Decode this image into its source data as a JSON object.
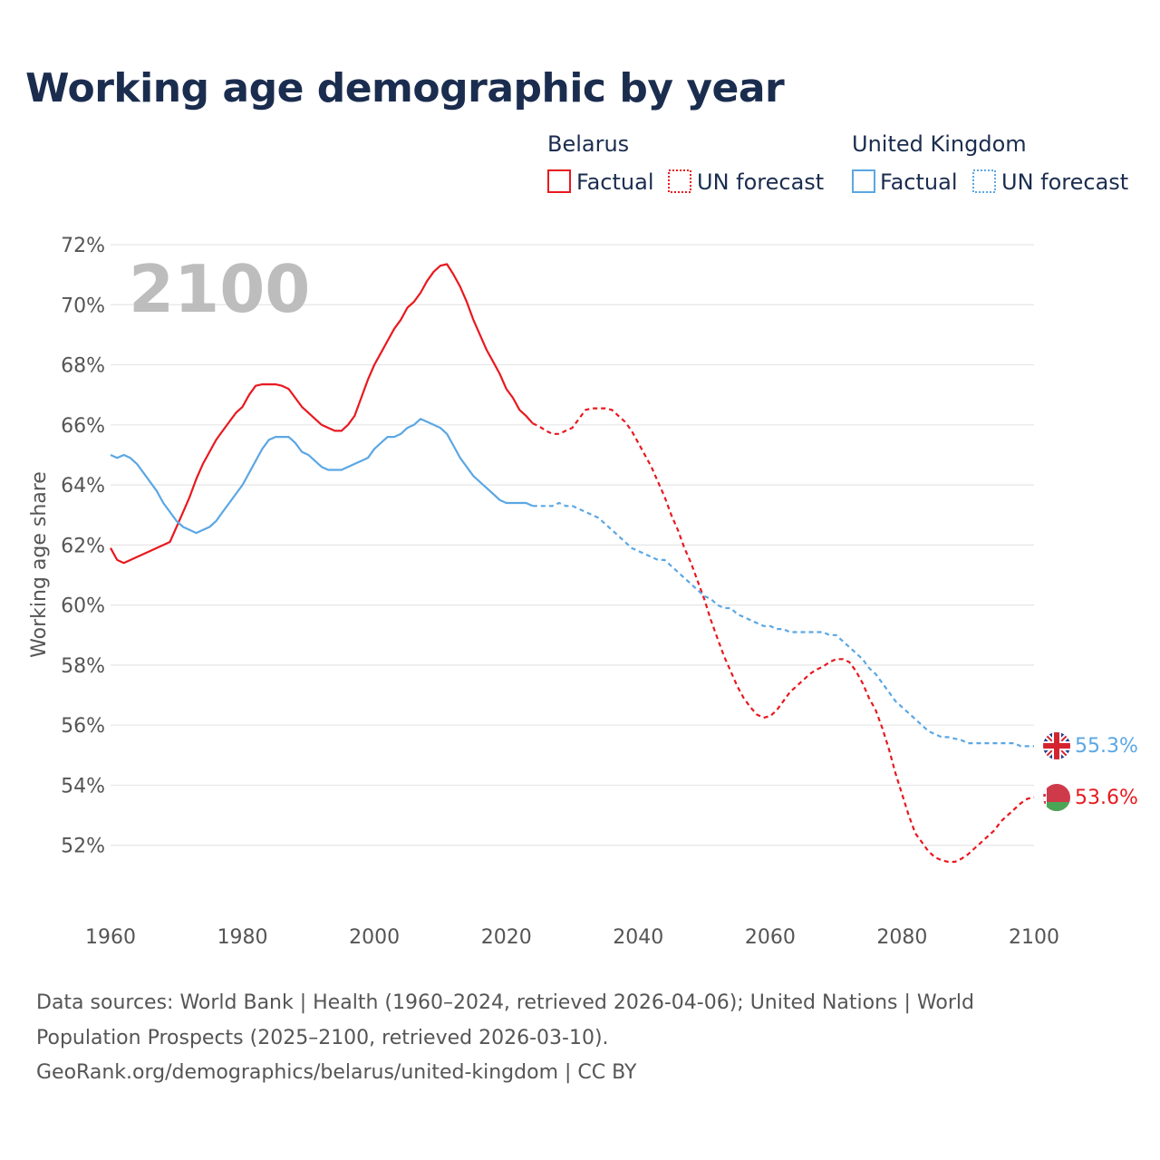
{
  "title": "Working age demographic by year",
  "big_year": "2100",
  "legend": {
    "groups": [
      {
        "name": "Belarus",
        "factual": "Factual",
        "forecast": "UN forecast",
        "color": "#e8191f"
      },
      {
        "name": "United Kingdom",
        "factual": "Factual",
        "forecast": "UN forecast",
        "color": "#5ba7e4"
      }
    ]
  },
  "end_labels": {
    "uk": "55.3%",
    "belarus": "53.6%"
  },
  "flags": {
    "uk": "uk-flag-icon",
    "belarus": "belarus-flag-icon"
  },
  "source": {
    "line1": "Data sources: World Bank | Health (1960–2024, retrieved 2026-04-06); United Nations | World",
    "line2": "Population Prospects (2025–2100, retrieved 2026-03-10).",
    "line3": "GeoRank.org/demographics/belarus/united-kingdom | CC BY"
  },
  "chart_data": {
    "type": "line",
    "title": "Working age demographic by year",
    "xlabel": "",
    "ylabel": "Working age share",
    "xlim": [
      1960,
      2100
    ],
    "ylim": [
      50,
      72
    ],
    "xticks": [
      1960,
      1980,
      2000,
      2020,
      2040,
      2060,
      2080,
      2100
    ],
    "yticks": [
      52,
      54,
      56,
      58,
      60,
      62,
      64,
      66,
      68,
      70,
      72
    ],
    "xtick_labels": [
      "1960",
      "1980",
      "2000",
      "2020",
      "2040",
      "2060",
      "2080",
      "2100"
    ],
    "ytick_labels": [
      "52%",
      "54%",
      "56%",
      "58%",
      "60%",
      "62%",
      "64%",
      "66%",
      "68%",
      "70%",
      "72%"
    ],
    "grid": true,
    "series": [
      {
        "name": "Belarus – Factual",
        "color": "#e8191f",
        "dash": "solid",
        "points": [
          [
            1960,
            61.9
          ],
          [
            1961,
            61.5
          ],
          [
            1962,
            61.4
          ],
          [
            1964,
            61.6
          ],
          [
            1966,
            61.8
          ],
          [
            1968,
            62.0
          ],
          [
            1969,
            62.1
          ],
          [
            1970,
            62.6
          ],
          [
            1971,
            63.1
          ],
          [
            1972,
            63.6
          ],
          [
            1973,
            64.2
          ],
          [
            1974,
            64.7
          ],
          [
            1975,
            65.1
          ],
          [
            1976,
            65.5
          ],
          [
            1977,
            65.8
          ],
          [
            1978,
            66.1
          ],
          [
            1979,
            66.4
          ],
          [
            1980,
            66.6
          ],
          [
            1981,
            67.0
          ],
          [
            1982,
            67.3
          ],
          [
            1983,
            67.35
          ],
          [
            1984,
            67.35
          ],
          [
            1985,
            67.35
          ],
          [
            1986,
            67.3
          ],
          [
            1987,
            67.2
          ],
          [
            1988,
            66.9
          ],
          [
            1989,
            66.6
          ],
          [
            1990,
            66.4
          ],
          [
            1991,
            66.2
          ],
          [
            1992,
            66.0
          ],
          [
            1993,
            65.9
          ],
          [
            1994,
            65.8
          ],
          [
            1995,
            65.8
          ],
          [
            1996,
            66.0
          ],
          [
            1997,
            66.3
          ],
          [
            1998,
            66.9
          ],
          [
            1999,
            67.5
          ],
          [
            2000,
            68.0
          ],
          [
            2001,
            68.4
          ],
          [
            2002,
            68.8
          ],
          [
            2003,
            69.2
          ],
          [
            2004,
            69.5
          ],
          [
            2005,
            69.9
          ],
          [
            2006,
            70.1
          ],
          [
            2007,
            70.4
          ],
          [
            2008,
            70.8
          ],
          [
            2009,
            71.1
          ],
          [
            2010,
            71.3
          ],
          [
            2011,
            71.35
          ],
          [
            2012,
            71.0
          ],
          [
            2013,
            70.6
          ],
          [
            2014,
            70.1
          ],
          [
            2015,
            69.5
          ],
          [
            2016,
            69.0
          ],
          [
            2017,
            68.5
          ],
          [
            2018,
            68.1
          ],
          [
            2019,
            67.7
          ],
          [
            2020,
            67.2
          ],
          [
            2021,
            66.9
          ],
          [
            2022,
            66.5
          ],
          [
            2023,
            66.3
          ],
          [
            2024,
            66.05
          ]
        ]
      },
      {
        "name": "Belarus – UN forecast",
        "color": "#e8191f",
        "dash": "dashed",
        "points": [
          [
            2024,
            66.05
          ],
          [
            2025,
            65.95
          ],
          [
            2026,
            65.8
          ],
          [
            2027,
            65.7
          ],
          [
            2028,
            65.7
          ],
          [
            2029,
            65.8
          ],
          [
            2030,
            65.9
          ],
          [
            2031,
            66.2
          ],
          [
            2032,
            66.5
          ],
          [
            2033,
            66.55
          ],
          [
            2034,
            66.55
          ],
          [
            2035,
            66.55
          ],
          [
            2036,
            66.5
          ],
          [
            2037,
            66.3
          ],
          [
            2038,
            66.1
          ],
          [
            2039,
            65.8
          ],
          [
            2040,
            65.4
          ],
          [
            2041,
            65.0
          ],
          [
            2042,
            64.6
          ],
          [
            2043,
            64.1
          ],
          [
            2044,
            63.6
          ],
          [
            2045,
            63.0
          ],
          [
            2046,
            62.5
          ],
          [
            2047,
            61.9
          ],
          [
            2048,
            61.4
          ],
          [
            2049,
            60.8
          ],
          [
            2050,
            60.2
          ],
          [
            2051,
            59.5
          ],
          [
            2052,
            58.9
          ],
          [
            2053,
            58.3
          ],
          [
            2054,
            57.8
          ],
          [
            2055,
            57.3
          ],
          [
            2056,
            56.9
          ],
          [
            2057,
            56.6
          ],
          [
            2058,
            56.35
          ],
          [
            2059,
            56.25
          ],
          [
            2060,
            56.3
          ],
          [
            2061,
            56.5
          ],
          [
            2062,
            56.8
          ],
          [
            2063,
            57.1
          ],
          [
            2064,
            57.3
          ],
          [
            2065,
            57.5
          ],
          [
            2066,
            57.7
          ],
          [
            2067,
            57.85
          ],
          [
            2068,
            57.95
          ],
          [
            2069,
            58.1
          ],
          [
            2070,
            58.2
          ],
          [
            2071,
            58.2
          ],
          [
            2072,
            58.1
          ],
          [
            2073,
            57.8
          ],
          [
            2074,
            57.4
          ],
          [
            2075,
            56.9
          ],
          [
            2076,
            56.5
          ],
          [
            2077,
            55.9
          ],
          [
            2078,
            55.2
          ],
          [
            2079,
            54.4
          ],
          [
            2080,
            53.7
          ],
          [
            2081,
            53.0
          ],
          [
            2082,
            52.4
          ],
          [
            2083,
            52.1
          ],
          [
            2084,
            51.8
          ],
          [
            2085,
            51.6
          ],
          [
            2086,
            51.5
          ],
          [
            2087,
            51.45
          ],
          [
            2088,
            51.45
          ],
          [
            2089,
            51.55
          ],
          [
            2090,
            51.7
          ],
          [
            2091,
            51.9
          ],
          [
            2092,
            52.1
          ],
          [
            2093,
            52.3
          ],
          [
            2094,
            52.5
          ],
          [
            2095,
            52.8
          ],
          [
            2096,
            53.0
          ],
          [
            2097,
            53.2
          ],
          [
            2098,
            53.4
          ],
          [
            2099,
            53.55
          ],
          [
            2100,
            53.6
          ]
        ]
      },
      {
        "name": "United Kingdom – Factual",
        "color": "#5ba7e4",
        "dash": "solid",
        "points": [
          [
            1960,
            65.0
          ],
          [
            1961,
            64.9
          ],
          [
            1962,
            65.0
          ],
          [
            1963,
            64.9
          ],
          [
            1964,
            64.7
          ],
          [
            1965,
            64.4
          ],
          [
            1966,
            64.1
          ],
          [
            1967,
            63.8
          ],
          [
            1968,
            63.4
          ],
          [
            1969,
            63.1
          ],
          [
            1970,
            62.8
          ],
          [
            1971,
            62.6
          ],
          [
            1972,
            62.5
          ],
          [
            1973,
            62.4
          ],
          [
            1974,
            62.5
          ],
          [
            1975,
            62.6
          ],
          [
            1976,
            62.8
          ],
          [
            1977,
            63.1
          ],
          [
            1978,
            63.4
          ],
          [
            1979,
            63.7
          ],
          [
            1980,
            64.0
          ],
          [
            1981,
            64.4
          ],
          [
            1982,
            64.8
          ],
          [
            1983,
            65.2
          ],
          [
            1984,
            65.5
          ],
          [
            1985,
            65.6
          ],
          [
            1986,
            65.6
          ],
          [
            1987,
            65.6
          ],
          [
            1988,
            65.4
          ],
          [
            1989,
            65.1
          ],
          [
            1990,
            65.0
          ],
          [
            1991,
            64.8
          ],
          [
            1992,
            64.6
          ],
          [
            1993,
            64.5
          ],
          [
            1994,
            64.5
          ],
          [
            1995,
            64.5
          ],
          [
            1996,
            64.6
          ],
          [
            1997,
            64.7
          ],
          [
            1998,
            64.8
          ],
          [
            1999,
            64.9
          ],
          [
            2000,
            65.2
          ],
          [
            2001,
            65.4
          ],
          [
            2002,
            65.6
          ],
          [
            2003,
            65.6
          ],
          [
            2004,
            65.7
          ],
          [
            2005,
            65.9
          ],
          [
            2006,
            66.0
          ],
          [
            2007,
            66.2
          ],
          [
            2008,
            66.1
          ],
          [
            2009,
            66.0
          ],
          [
            2010,
            65.9
          ],
          [
            2011,
            65.7
          ],
          [
            2012,
            65.3
          ],
          [
            2013,
            64.9
          ],
          [
            2014,
            64.6
          ],
          [
            2015,
            64.3
          ],
          [
            2016,
            64.1
          ],
          [
            2017,
            63.9
          ],
          [
            2018,
            63.7
          ],
          [
            2019,
            63.5
          ],
          [
            2020,
            63.4
          ],
          [
            2021,
            63.4
          ],
          [
            2022,
            63.4
          ],
          [
            2023,
            63.4
          ],
          [
            2024,
            63.3
          ]
        ]
      },
      {
        "name": "United Kingdom – UN forecast",
        "color": "#5ba7e4",
        "dash": "dashed",
        "points": [
          [
            2024,
            63.3
          ],
          [
            2025,
            63.3
          ],
          [
            2026,
            63.3
          ],
          [
            2027,
            63.3
          ],
          [
            2028,
            63.4
          ],
          [
            2029,
            63.3
          ],
          [
            2030,
            63.3
          ],
          [
            2031,
            63.2
          ],
          [
            2032,
            63.1
          ],
          [
            2033,
            63.0
          ],
          [
            2034,
            62.9
          ],
          [
            2035,
            62.7
          ],
          [
            2036,
            62.5
          ],
          [
            2037,
            62.3
          ],
          [
            2038,
            62.1
          ],
          [
            2039,
            61.9
          ],
          [
            2040,
            61.8
          ],
          [
            2041,
            61.7
          ],
          [
            2042,
            61.6
          ],
          [
            2043,
            61.5
          ],
          [
            2044,
            61.5
          ],
          [
            2045,
            61.3
          ],
          [
            2046,
            61.1
          ],
          [
            2047,
            60.9
          ],
          [
            2048,
            60.7
          ],
          [
            2049,
            60.5
          ],
          [
            2050,
            60.3
          ],
          [
            2051,
            60.2
          ],
          [
            2052,
            60.0
          ],
          [
            2053,
            59.9
          ],
          [
            2054,
            59.9
          ],
          [
            2055,
            59.7
          ],
          [
            2056,
            59.6
          ],
          [
            2057,
            59.5
          ],
          [
            2058,
            59.4
          ],
          [
            2059,
            59.3
          ],
          [
            2060,
            59.3
          ],
          [
            2061,
            59.2
          ],
          [
            2062,
            59.2
          ],
          [
            2063,
            59.1
          ],
          [
            2064,
            59.1
          ],
          [
            2065,
            59.1
          ],
          [
            2066,
            59.1
          ],
          [
            2067,
            59.1
          ],
          [
            2068,
            59.1
          ],
          [
            2069,
            59.0
          ],
          [
            2070,
            59.0
          ],
          [
            2071,
            58.8
          ],
          [
            2072,
            58.6
          ],
          [
            2073,
            58.4
          ],
          [
            2074,
            58.2
          ],
          [
            2075,
            57.9
          ],
          [
            2076,
            57.7
          ],
          [
            2077,
            57.4
          ],
          [
            2078,
            57.1
          ],
          [
            2079,
            56.8
          ],
          [
            2080,
            56.6
          ],
          [
            2081,
            56.4
          ],
          [
            2082,
            56.2
          ],
          [
            2083,
            56.0
          ],
          [
            2084,
            55.8
          ],
          [
            2085,
            55.7
          ],
          [
            2086,
            55.6
          ],
          [
            2087,
            55.6
          ],
          [
            2088,
            55.55
          ],
          [
            2089,
            55.5
          ],
          [
            2090,
            55.4
          ],
          [
            2091,
            55.4
          ],
          [
            2092,
            55.4
          ],
          [
            2093,
            55.4
          ],
          [
            2094,
            55.4
          ],
          [
            2095,
            55.4
          ],
          [
            2096,
            55.4
          ],
          [
            2097,
            55.4
          ],
          [
            2098,
            55.3
          ],
          [
            2099,
            55.3
          ],
          [
            2100,
            55.3
          ]
        ]
      }
    ]
  }
}
